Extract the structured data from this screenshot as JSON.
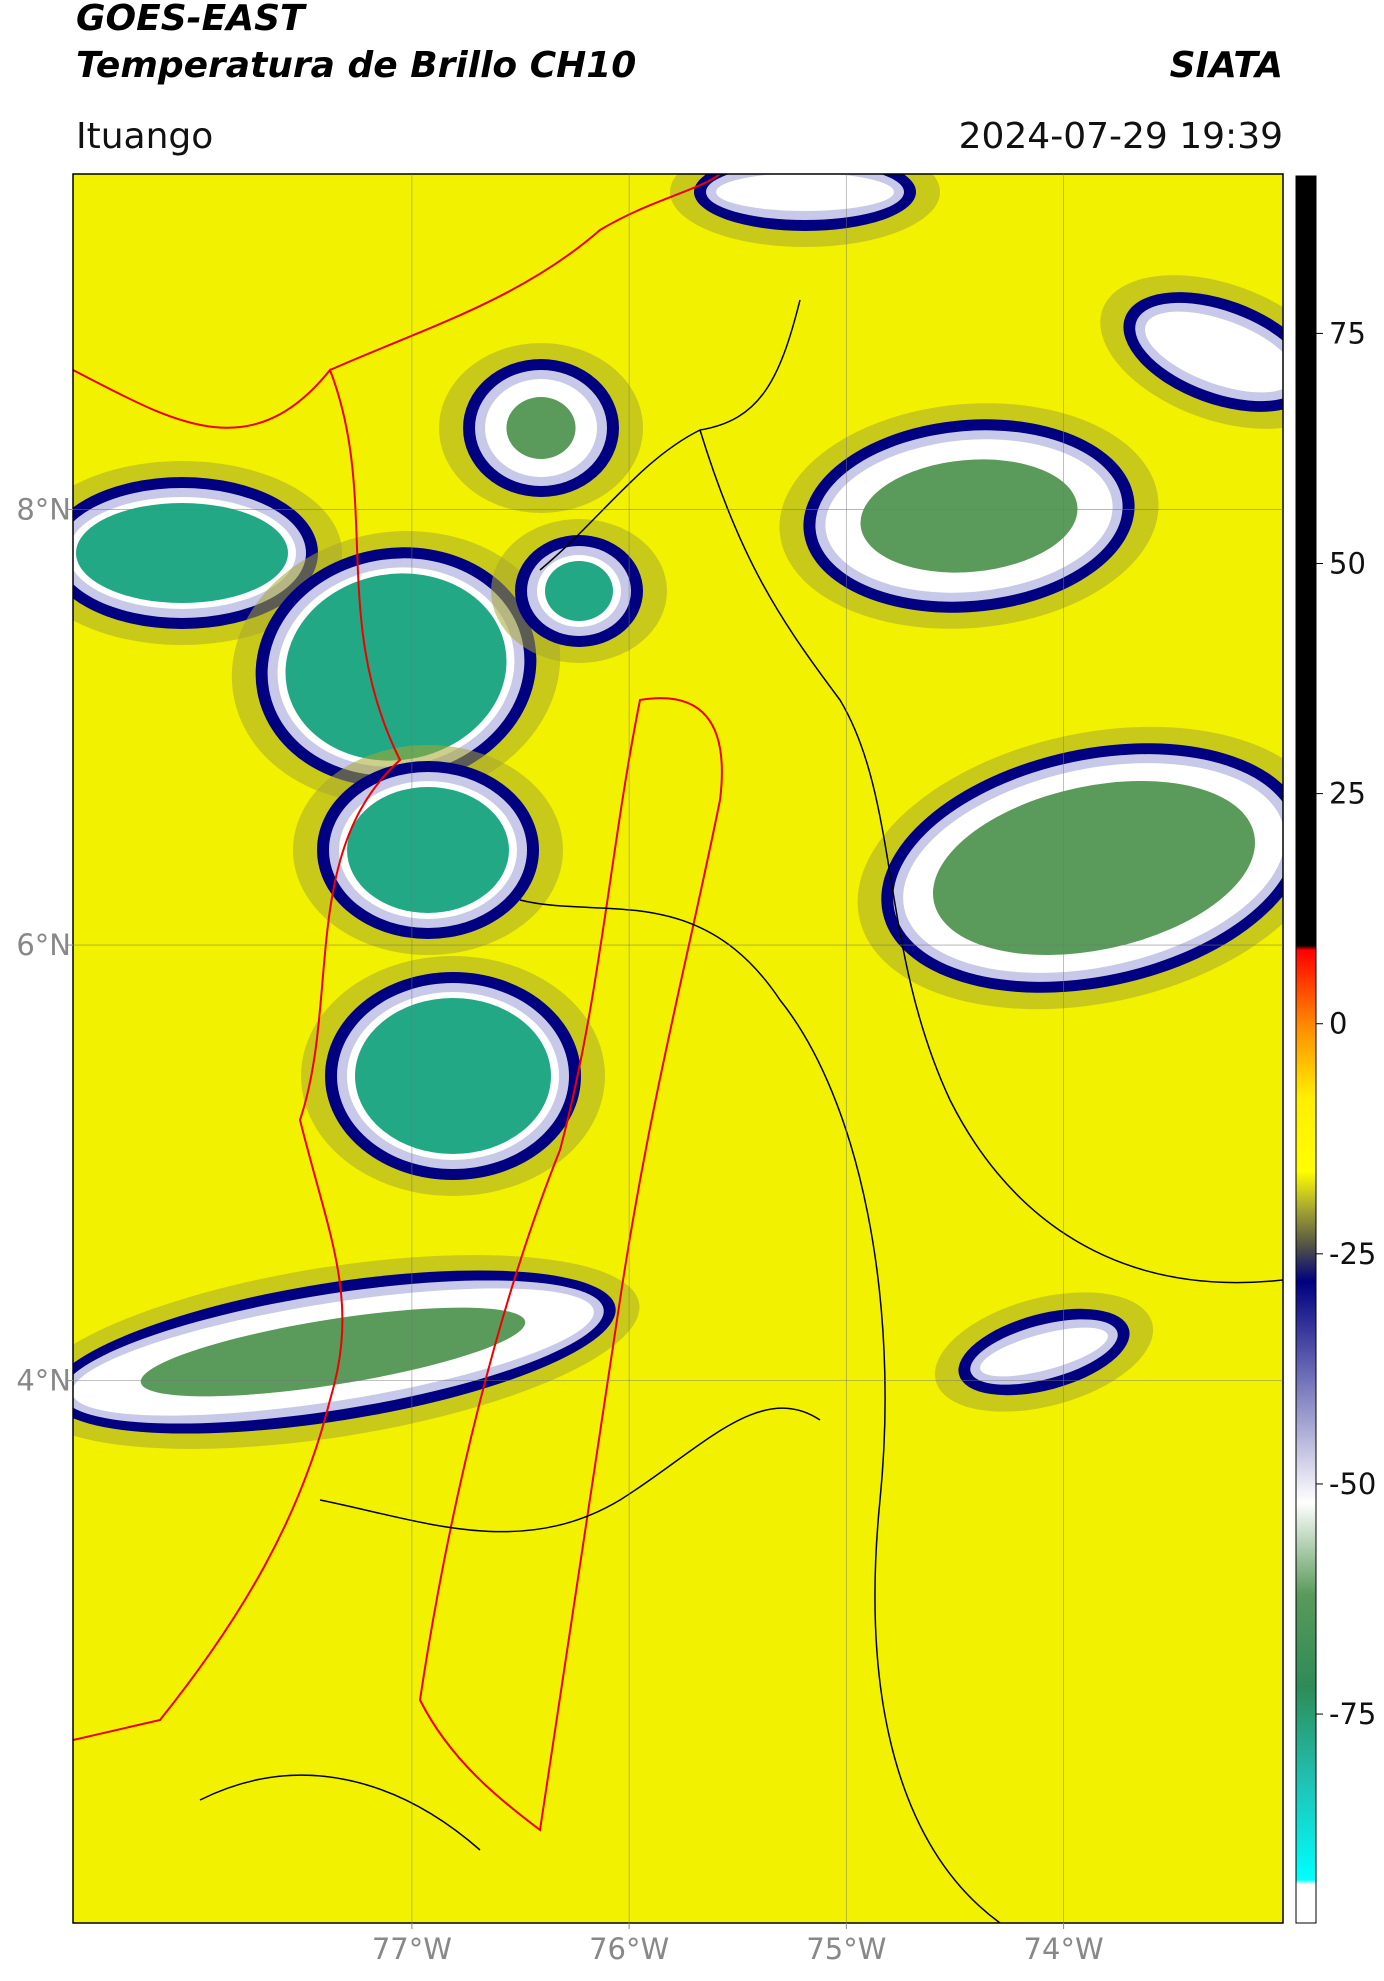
{
  "chart_data": {
    "type": "map",
    "title": "GOES-EAST",
    "subtitle": "Temperatura de Brillo CH10",
    "source": "SIATA",
    "location": "Ituango",
    "datetime": "2024-07-29 19:39",
    "xlim": [
      -78.56,
      -72.99
    ],
    "ylim": [
      1.51,
      9.54
    ],
    "xticks": [
      {
        "value": -77,
        "label": "77°W"
      },
      {
        "value": -76,
        "label": "76°W"
      },
      {
        "value": -75,
        "label": "75°W"
      },
      {
        "value": -74,
        "label": "74°W"
      }
    ],
    "yticks": [
      {
        "value": 4,
        "label": "4°N"
      },
      {
        "value": 6,
        "label": "6°N"
      },
      {
        "value": 8,
        "label": "8°N"
      }
    ],
    "grid": true,
    "colorbar": {
      "clim": [
        -97.7,
        92.1
      ],
      "ticks": [
        -75,
        -50,
        -25,
        0,
        25,
        50,
        75
      ],
      "stops": [
        {
          "value": -97.7,
          "color": "#ffffff"
        },
        {
          "value": -93.5,
          "color": "#ffffff"
        },
        {
          "value": -93,
          "color": "#00ffff"
        },
        {
          "value": -82,
          "color": "#20c0b0"
        },
        {
          "value": -72,
          "color": "#2e8b57"
        },
        {
          "value": -62,
          "color": "#5a9a5a"
        },
        {
          "value": -52,
          "color": "#ffffff"
        },
        {
          "value": -40,
          "color": "#8080c0"
        },
        {
          "value": -28,
          "color": "#000080"
        },
        {
          "value": -24,
          "color": "#555544"
        },
        {
          "value": -20,
          "color": "#a8a830"
        },
        {
          "value": -16,
          "color": "#ffff00"
        },
        {
          "value": -8,
          "color": "#ffee00"
        },
        {
          "value": 0,
          "color": "#ff8800"
        },
        {
          "value": 8,
          "color": "#ff0000"
        },
        {
          "value": 8.5,
          "color": "#000000"
        },
        {
          "value": 92.1,
          "color": "#000000"
        }
      ]
    }
  }
}
